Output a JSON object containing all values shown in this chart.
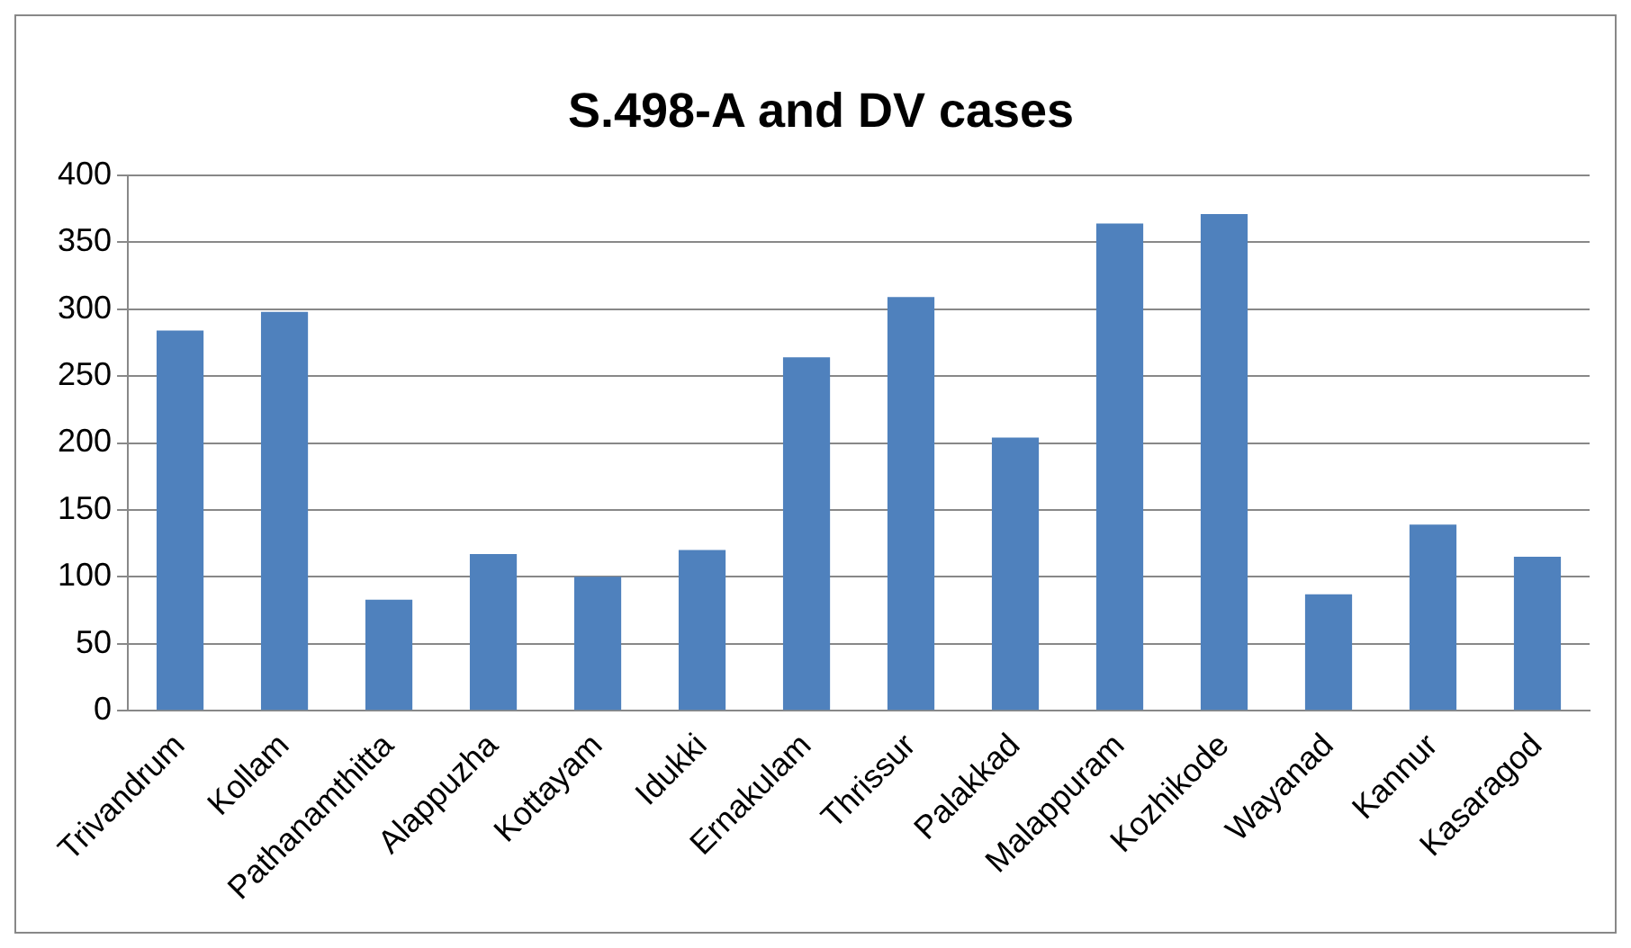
{
  "chart_data": {
    "type": "bar",
    "title": "S.498-A and DV cases",
    "categories": [
      "Trivandrum",
      "Kollam",
      "Pathanamthitta",
      "Alappuzha",
      "Kottayam",
      "Idukki",
      "Ernakulam",
      "Thrissur",
      "Palakkad",
      "Malappuram",
      "Kozhikode",
      "Wayanad",
      "Kannur",
      "Kasaragod"
    ],
    "values": [
      284,
      298,
      83,
      117,
      100,
      120,
      264,
      309,
      204,
      364,
      371,
      87,
      139,
      115
    ],
    "color": "#4f81bd",
    "ylim": [
      0,
      400
    ],
    "yticks": [
      0,
      50,
      100,
      150,
      200,
      250,
      300,
      350,
      400
    ],
    "grid": "y",
    "legend": false
  }
}
